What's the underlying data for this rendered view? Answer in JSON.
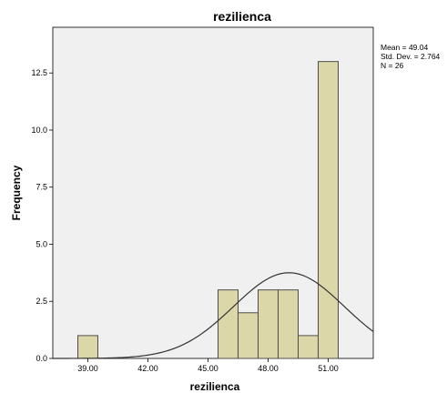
{
  "chart_data": {
    "type": "bar",
    "title": "rezilienca",
    "xlabel": "rezilienca",
    "ylabel": "Frequency",
    "x_tick_labels": [
      "39.00",
      "42.00",
      "45.00",
      "48.00",
      "51.00"
    ],
    "x_tick_values": [
      39,
      42,
      45,
      48,
      51
    ],
    "y_tick_labels": [
      "0.0",
      "2.5",
      "5.0",
      "7.5",
      "10.0",
      "12.5"
    ],
    "y_tick_values": [
      0,
      2.5,
      5,
      7.5,
      10,
      12.5
    ],
    "xlim": [
      37.25,
      53.25
    ],
    "ylim": [
      0,
      14.5
    ],
    "bin_width": 1,
    "bins": [
      {
        "center": 39,
        "value": 1
      },
      {
        "center": 46,
        "value": 3
      },
      {
        "center": 47,
        "value": 2
      },
      {
        "center": 48,
        "value": 3
      },
      {
        "center": 49,
        "value": 3
      },
      {
        "center": 50,
        "value": 1
      },
      {
        "center": 51,
        "value": 13
      }
    ],
    "normal_curve": {
      "mean": 49.04,
      "std_dev": 2.764,
      "n": 26
    },
    "stats": [
      "Mean = 49.04",
      "Std. Dev. = 2.764",
      "N = 26"
    ],
    "colors": {
      "bar_fill": "#dcd7a9",
      "bar_stroke": "#4d4d4d",
      "plot_bg": "#f0f0f0",
      "curve": "#333333"
    },
    "grid": false
  }
}
